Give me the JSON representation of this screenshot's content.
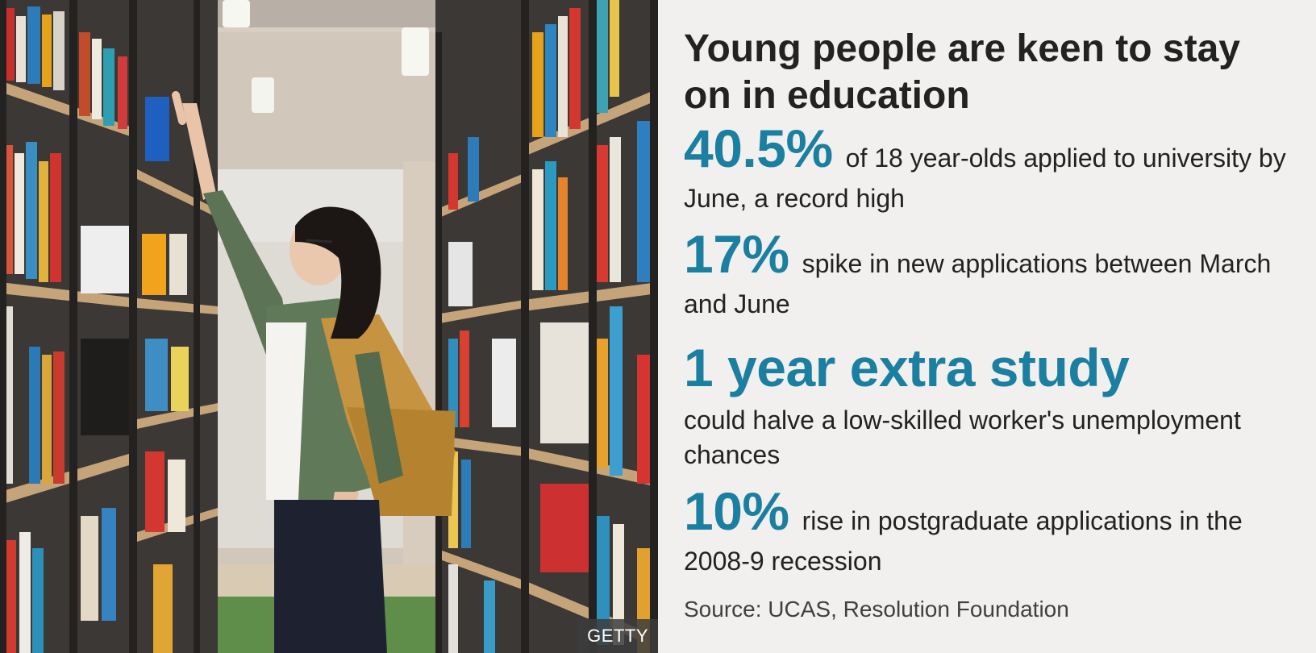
{
  "headline": "Young people are keen to stay on in education",
  "stats": [
    {
      "figure": "40.5%",
      "text": "of 18 year-olds applied to university by June, a record high"
    },
    {
      "figure": "17%",
      "text": "spike in new applications between March and June"
    },
    {
      "figure": "1 year extra study",
      "text": "could halve a low-skilled worker's unemployment chances"
    },
    {
      "figure": "10%",
      "text": "rise in postgraduate applications in the 2008-9 recession"
    }
  ],
  "source": "Source: UCAS, Resolution Foundation",
  "photo_credit": "GETTY",
  "colors": {
    "accent": "#1a7fa0",
    "text": "#222222",
    "background": "#f2f0ee"
  }
}
